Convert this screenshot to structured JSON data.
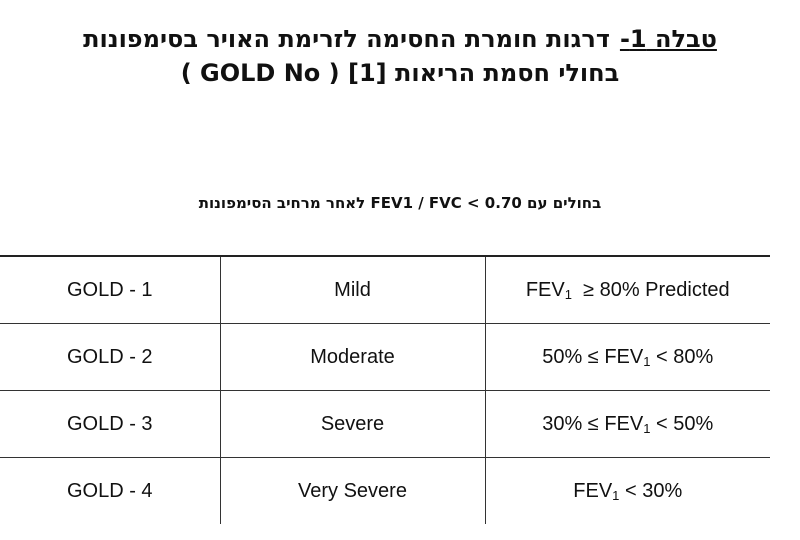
{
  "title": {
    "label": "טבלה 1-",
    "line1": "דרגות חומרת החסימה לזרימת האויר בסימפונות",
    "line2_left": "בחולי חסמת הריאות [1]",
    "line2_paren": "( GOLD No )"
  },
  "subtitle": "בחולים עם FEV1 / FVC < 0.70 לאחר מרחיב הסימפונות",
  "table": {
    "rows": [
      {
        "grade": "GOLD  - 1",
        "severity": "Mild",
        "criteria_pre": "FEV",
        "criteria_sub": "1",
        "criteria_post": "  ≥ 80% Predicted"
      },
      {
        "grade": "GOLD  - 2",
        "severity": "Moderate",
        "criteria_pre": "50% ≤ FEV",
        "criteria_sub": "1",
        "criteria_post": " < 80%"
      },
      {
        "grade": "GOLD  - 3",
        "severity": "Severe",
        "criteria_pre": "30% ≤ FEV",
        "criteria_sub": "1",
        "criteria_post": " < 50%"
      },
      {
        "grade": "GOLD  - 4",
        "severity": "Very Severe",
        "criteria_pre": "FEV",
        "criteria_sub": "1",
        "criteria_post": " < 30%"
      }
    ]
  }
}
